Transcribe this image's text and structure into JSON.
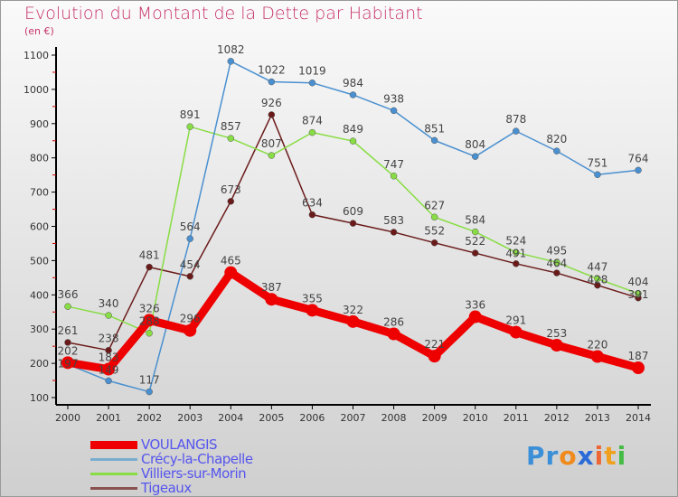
{
  "chart_data": {
    "type": "line",
    "title": "Evolution du Montant de la Dette par Habitant",
    "subtitle": "(en €)",
    "xlabel": "",
    "ylabel": "",
    "x": [
      2000,
      2001,
      2002,
      2003,
      2004,
      2005,
      2006,
      2007,
      2008,
      2009,
      2010,
      2011,
      2012,
      2013,
      2014
    ],
    "ylim": [
      100,
      1100
    ],
    "yticks": [
      100,
      200,
      300,
      400,
      500,
      600,
      700,
      800,
      900,
      1000,
      1100
    ],
    "legend_position": "bottom-left",
    "series": [
      {
        "name": "VOULANGIS",
        "color": "#ee0000",
        "values": [
          202,
          183,
          326,
          296,
          465,
          387,
          355,
          322,
          286,
          221,
          336,
          291,
          253,
          220,
          187
        ]
      },
      {
        "name": "Crécy-la-Chapelle",
        "color": "#4a90d0",
        "values": [
          197,
          149,
          117,
          564,
          1082,
          1022,
          1019,
          984,
          938,
          851,
          804,
          878,
          820,
          751,
          764
        ]
      },
      {
        "name": "Villiers-sur-Morin",
        "color": "#88dd44",
        "values": [
          366,
          340,
          288,
          891,
          857,
          807,
          874,
          849,
          747,
          627,
          584,
          524,
          495,
          447,
          404
        ]
      },
      {
        "name": "Tigeaux",
        "color": "#6b1a1a",
        "values": [
          261,
          238,
          481,
          454,
          673,
          926,
          634,
          609,
          583,
          552,
          522,
          491,
          464,
          428,
          391
        ]
      }
    ]
  },
  "logo": "Proxiti"
}
